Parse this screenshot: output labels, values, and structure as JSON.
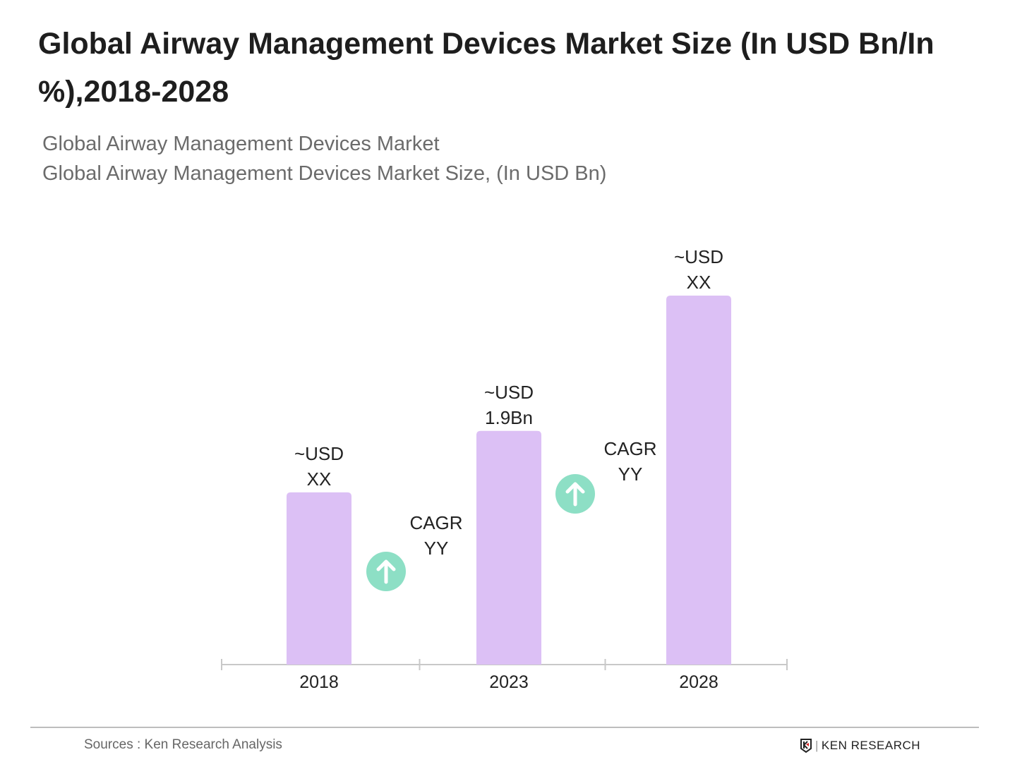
{
  "header": {
    "title": "Global Airway Management Devices Market Size (In USD Bn/In %),2018-2028",
    "subtitle1": "Global Airway Management Devices Market",
    "subtitle2": "Global Airway Management Devices Market Size, (In USD Bn)"
  },
  "chart_data": {
    "type": "bar",
    "categories": [
      "2018",
      "2023",
      "2028"
    ],
    "values": [
      1.4,
      1.9,
      3.0
    ],
    "value_labels": [
      [
        "~USD",
        "XX"
      ],
      [
        "~USD",
        "1.9Bn"
      ],
      [
        "~USD",
        "XX"
      ]
    ],
    "annotations": [
      {
        "between": [
          "2018",
          "2023"
        ],
        "lines": [
          "CAGR",
          "YY"
        ],
        "icon": "arrow-up-circle-icon"
      },
      {
        "between": [
          "2023",
          "2028"
        ],
        "lines": [
          "CAGR",
          "YY"
        ],
        "icon": "arrow-up-circle-icon"
      }
    ],
    "ylim": [
      0,
      3.0
    ],
    "grid": false,
    "colors": {
      "bar": "#dcc0f5",
      "arrow_circle": "#8ddfc5",
      "axis": "#c8c8c8"
    }
  },
  "footer": {
    "source": "Sources : Ken Research Analysis",
    "logo_text": "KEN RESEARCH"
  }
}
